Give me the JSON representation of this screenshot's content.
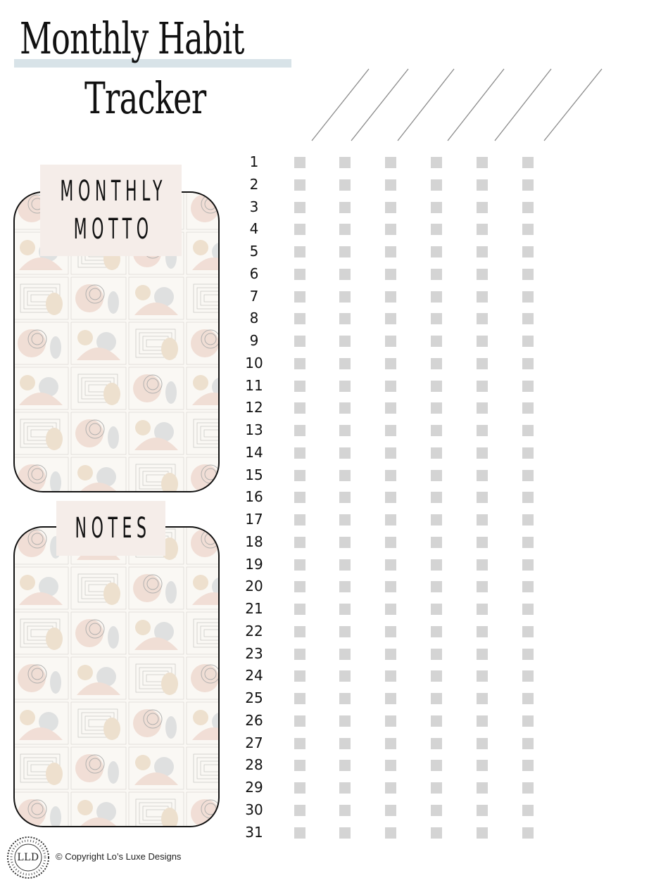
{
  "title": {
    "line1": "Monthly Habit",
    "line2": "Tracker"
  },
  "motto": {
    "line1": "MONTHLY",
    "line2": "MOTTO"
  },
  "notes": {
    "label": "NOTES"
  },
  "days": [
    "1",
    "2",
    "3",
    "4",
    "5",
    "6",
    "7",
    "8",
    "9",
    "10",
    "11",
    "12",
    "13",
    "14",
    "15",
    "16",
    "17",
    "18",
    "19",
    "20",
    "21",
    "22",
    "23",
    "24",
    "25",
    "26",
    "27",
    "28",
    "29",
    "30",
    "31"
  ],
  "habit_columns": 6,
  "footer": {
    "logo_text": "LLD",
    "copyright": "© Copyright Lo’s Luxe Designs"
  },
  "colors": {
    "title_underline": "#d8e3e8",
    "label_tab": "#f5ede9",
    "checkbox": "#d4d4d4",
    "diagonal_lines": "#8a8a8a",
    "pattern_blush": "#e9c9bd",
    "pattern_tan": "#e3cdb0",
    "pattern_grey": "#c9ced1"
  }
}
